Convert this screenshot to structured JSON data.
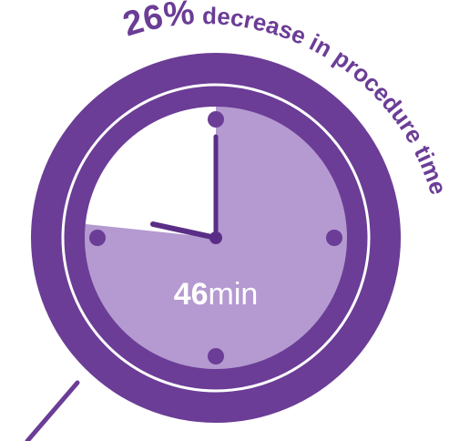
{
  "headline": {
    "percent": "26%",
    "phrase": "decrease in procedure time"
  },
  "clock": {
    "value_number": "46",
    "value_unit": "min",
    "elapsed_fraction": 0.7667
  },
  "colors": {
    "ring": "#6b3d96",
    "face_fill": "#b49ad0",
    "face_empty": "#ffffff",
    "hands": "#5a2e86",
    "text_light": "#ffffff",
    "headline_text": "#6b3d96"
  }
}
